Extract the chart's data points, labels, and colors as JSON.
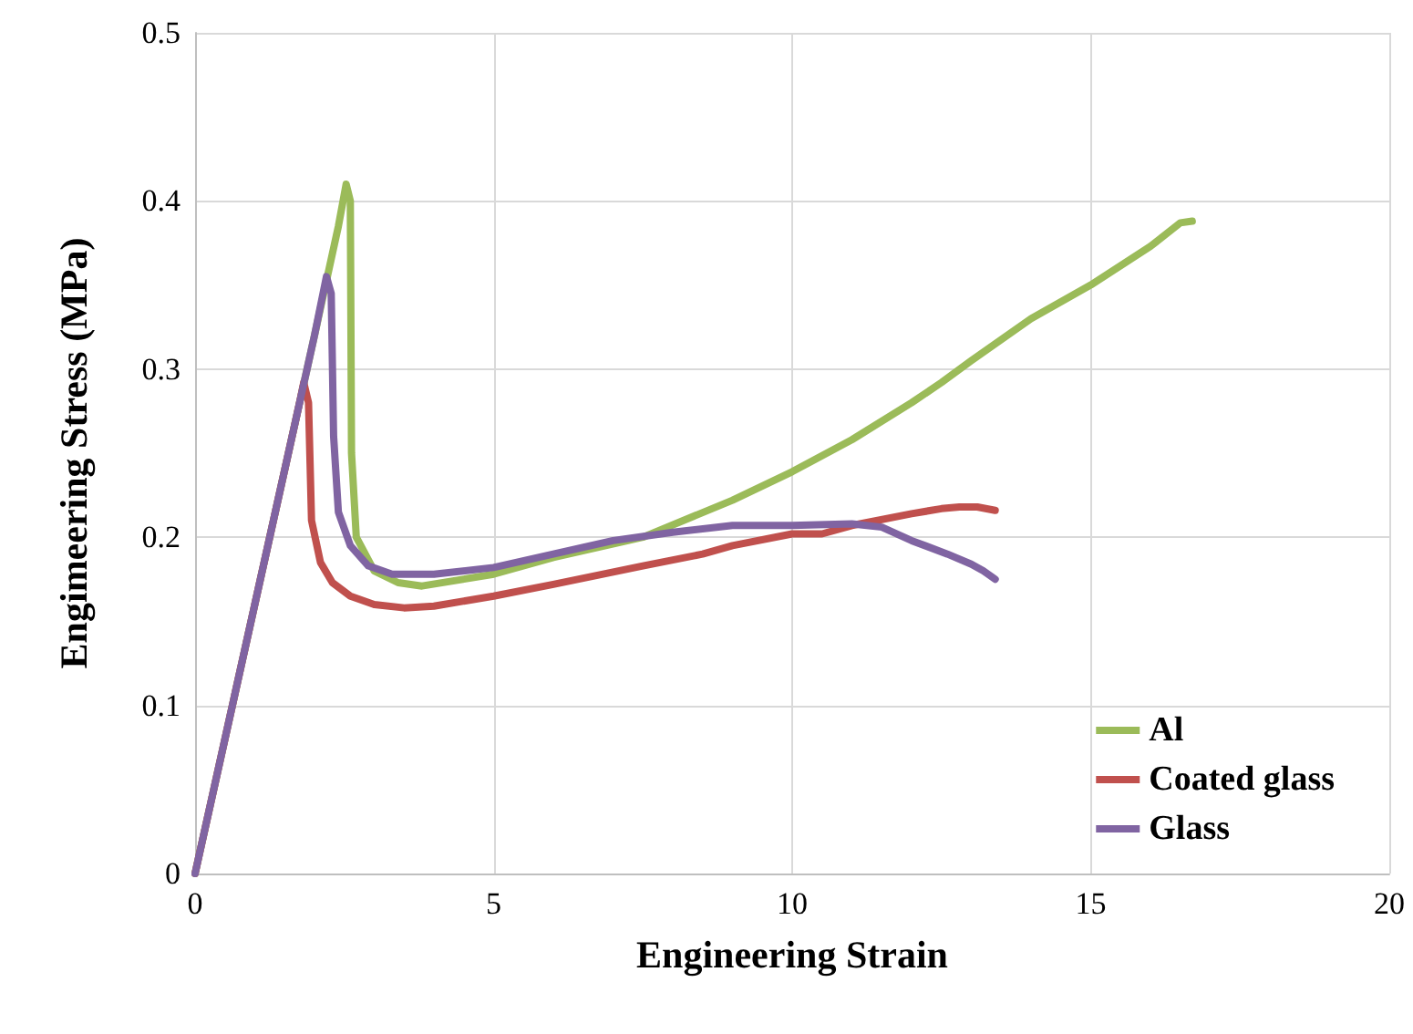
{
  "chart_data": {
    "type": "line",
    "xlabel": "Engineering Strain",
    "ylabel": "Engimeering Stress (MPa)",
    "xlim": [
      0,
      20
    ],
    "xticks": [
      0,
      5,
      10,
      15,
      20
    ],
    "ylim": [
      0,
      0.5
    ],
    "yticks": [
      0,
      0.1,
      0.2,
      0.3,
      0.4,
      0.5
    ],
    "grid": true,
    "legend": "bottom right",
    "marker": "none",
    "line_style": "solid",
    "series": [
      {
        "name": "Al",
        "color": "#9bbb59",
        "x": [
          0,
          1,
          2,
          2.4,
          2.53,
          2.6,
          2.62,
          2.7,
          3,
          3.4,
          3.8,
          5,
          6,
          7.5,
          9,
          10,
          11,
          12,
          12.5,
          13,
          14,
          15,
          16,
          16.5,
          16.7
        ],
        "values": [
          0,
          0.16,
          0.32,
          0.385,
          0.41,
          0.4,
          0.25,
          0.2,
          0.18,
          0.173,
          0.171,
          0.178,
          0.188,
          0.2,
          0.222,
          0.239,
          0.258,
          0.28,
          0.292,
          0.305,
          0.33,
          0.35,
          0.373,
          0.387,
          0.388
        ]
      },
      {
        "name": "Coated glass",
        "color": "#c0504d",
        "x": [
          0,
          1,
          1.75,
          1.82,
          1.9,
          1.95,
          2.1,
          2.3,
          2.6,
          3,
          3.5,
          4,
          5,
          6,
          7.5,
          8.5,
          9,
          10,
          10.5,
          11,
          12,
          12.5,
          12.8,
          13.1,
          13.4
        ],
        "values": [
          0,
          0.16,
          0.28,
          0.292,
          0.28,
          0.21,
          0.185,
          0.173,
          0.165,
          0.16,
          0.158,
          0.159,
          0.165,
          0.172,
          0.183,
          0.19,
          0.195,
          0.202,
          0.202,
          0.207,
          0.214,
          0.217,
          0.218,
          0.218,
          0.216
        ]
      },
      {
        "name": "Glass",
        "color": "#8064a2",
        "x": [
          0,
          1,
          2,
          2.2,
          2.28,
          2.32,
          2.4,
          2.6,
          2.9,
          3.3,
          4,
          5,
          6,
          7,
          8,
          9,
          10,
          11,
          11.5,
          12,
          12.6,
          13,
          13.2,
          13.4
        ],
        "values": [
          0,
          0.16,
          0.32,
          0.355,
          0.345,
          0.26,
          0.215,
          0.195,
          0.183,
          0.178,
          0.178,
          0.182,
          0.19,
          0.198,
          0.203,
          0.207,
          0.207,
          0.208,
          0.206,
          0.198,
          0.19,
          0.184,
          0.18,
          0.175
        ]
      }
    ]
  }
}
